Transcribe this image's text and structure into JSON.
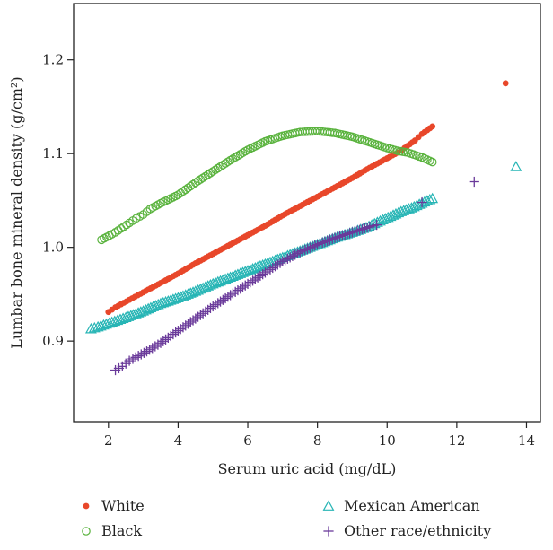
{
  "chart_data": {
    "type": "scatter",
    "title": "",
    "xlabel": "Serum uric acid (mg/dL)",
    "ylabel": "Lumbar bone mineral density (g/cm²)",
    "xlim": [
      1.0,
      14.4
    ],
    "ylim": [
      0.814,
      1.26
    ],
    "x_ticks": [
      "2",
      "4",
      "6",
      "8",
      "10",
      "12",
      "14"
    ],
    "y_ticks": [
      "0.9",
      "1.0",
      "1.1",
      "1.2"
    ],
    "grid": false,
    "legend_position": "bottom",
    "series": [
      {
        "name": "White",
        "marker": "filled-circle",
        "color": "#e8472a",
        "points": [
          [
            2.0,
            0.931
          ],
          [
            2.2,
            0.936
          ],
          [
            2.6,
            0.944
          ],
          [
            3.0,
            0.952
          ],
          [
            3.5,
            0.962
          ],
          [
            4.0,
            0.972
          ],
          [
            4.5,
            0.983
          ],
          [
            5.0,
            0.993
          ],
          [
            5.5,
            1.003
          ],
          [
            6.0,
            1.013
          ],
          [
            6.5,
            1.023
          ],
          [
            7.0,
            1.034
          ],
          [
            7.5,
            1.044
          ],
          [
            8.0,
            1.054
          ],
          [
            8.5,
            1.064
          ],
          [
            9.0,
            1.074
          ],
          [
            9.5,
            1.085
          ],
          [
            10.0,
            1.095
          ],
          [
            10.3,
            1.101
          ],
          [
            10.5,
            1.106
          ],
          [
            10.8,
            1.114
          ],
          [
            11.0,
            1.121
          ],
          [
            11.3,
            1.129
          ],
          [
            13.4,
            1.175
          ]
        ]
      },
      {
        "name": "Black",
        "marker": "open-circle",
        "color": "#5ab33e",
        "points": [
          [
            1.8,
            1.008
          ],
          [
            2.1,
            1.014
          ],
          [
            2.2,
            1.016
          ],
          [
            2.6,
            1.026
          ],
          [
            2.8,
            1.031
          ],
          [
            3.0,
            1.035
          ],
          [
            3.2,
            1.041
          ],
          [
            3.5,
            1.047
          ],
          [
            4.0,
            1.056
          ],
          [
            4.5,
            1.069
          ],
          [
            5.0,
            1.081
          ],
          [
            5.5,
            1.093
          ],
          [
            6.0,
            1.104
          ],
          [
            6.5,
            1.113
          ],
          [
            7.0,
            1.119
          ],
          [
            7.5,
            1.123
          ],
          [
            8.0,
            1.124
          ],
          [
            8.5,
            1.122
          ],
          [
            9.0,
            1.118
          ],
          [
            9.5,
            1.112
          ],
          [
            10.0,
            1.106
          ],
          [
            10.3,
            1.103
          ],
          [
            10.6,
            1.101
          ],
          [
            11.0,
            1.096
          ],
          [
            11.3,
            1.091
          ]
        ]
      },
      {
        "name": "Mexican American",
        "marker": "open-triangle",
        "color": "#27b5b5",
        "points": [
          [
            1.5,
            0.913
          ],
          [
            1.7,
            0.915
          ],
          [
            2.1,
            0.92
          ],
          [
            2.5,
            0.925
          ],
          [
            3.0,
            0.932
          ],
          [
            3.5,
            0.94
          ],
          [
            4.0,
            0.946
          ],
          [
            4.5,
            0.953
          ],
          [
            5.0,
            0.961
          ],
          [
            5.5,
            0.968
          ],
          [
            6.0,
            0.975
          ],
          [
            6.5,
            0.982
          ],
          [
            7.0,
            0.989
          ],
          [
            7.5,
            0.996
          ],
          [
            8.0,
            1.003
          ],
          [
            8.5,
            1.01
          ],
          [
            9.0,
            1.016
          ],
          [
            9.4,
            1.021
          ],
          [
            9.8,
            1.028
          ],
          [
            10.4,
            1.038
          ],
          [
            10.7,
            1.042
          ],
          [
            11.0,
            1.047
          ],
          [
            11.3,
            1.052
          ],
          [
            13.7,
            1.086
          ]
        ]
      },
      {
        "name": "Other race/ethnicity",
        "marker": "plus",
        "color": "#6a3a9a",
        "points": [
          [
            2.2,
            0.869
          ],
          [
            2.4,
            0.873
          ],
          [
            2.6,
            0.879
          ],
          [
            2.7,
            0.881
          ],
          [
            3.1,
            0.889
          ],
          [
            3.5,
            0.898
          ],
          [
            4.0,
            0.911
          ],
          [
            4.5,
            0.924
          ],
          [
            5.0,
            0.937
          ],
          [
            5.5,
            0.949
          ],
          [
            6.0,
            0.961
          ],
          [
            6.5,
            0.973
          ],
          [
            7.0,
            0.985
          ],
          [
            7.5,
            0.995
          ],
          [
            8.0,
            1.003
          ],
          [
            8.5,
            1.01
          ],
          [
            9.0,
            1.016
          ],
          [
            9.5,
            1.022
          ],
          [
            9.7,
            1.024
          ],
          [
            11.0,
            1.048
          ],
          [
            12.5,
            1.07
          ]
        ]
      }
    ]
  }
}
